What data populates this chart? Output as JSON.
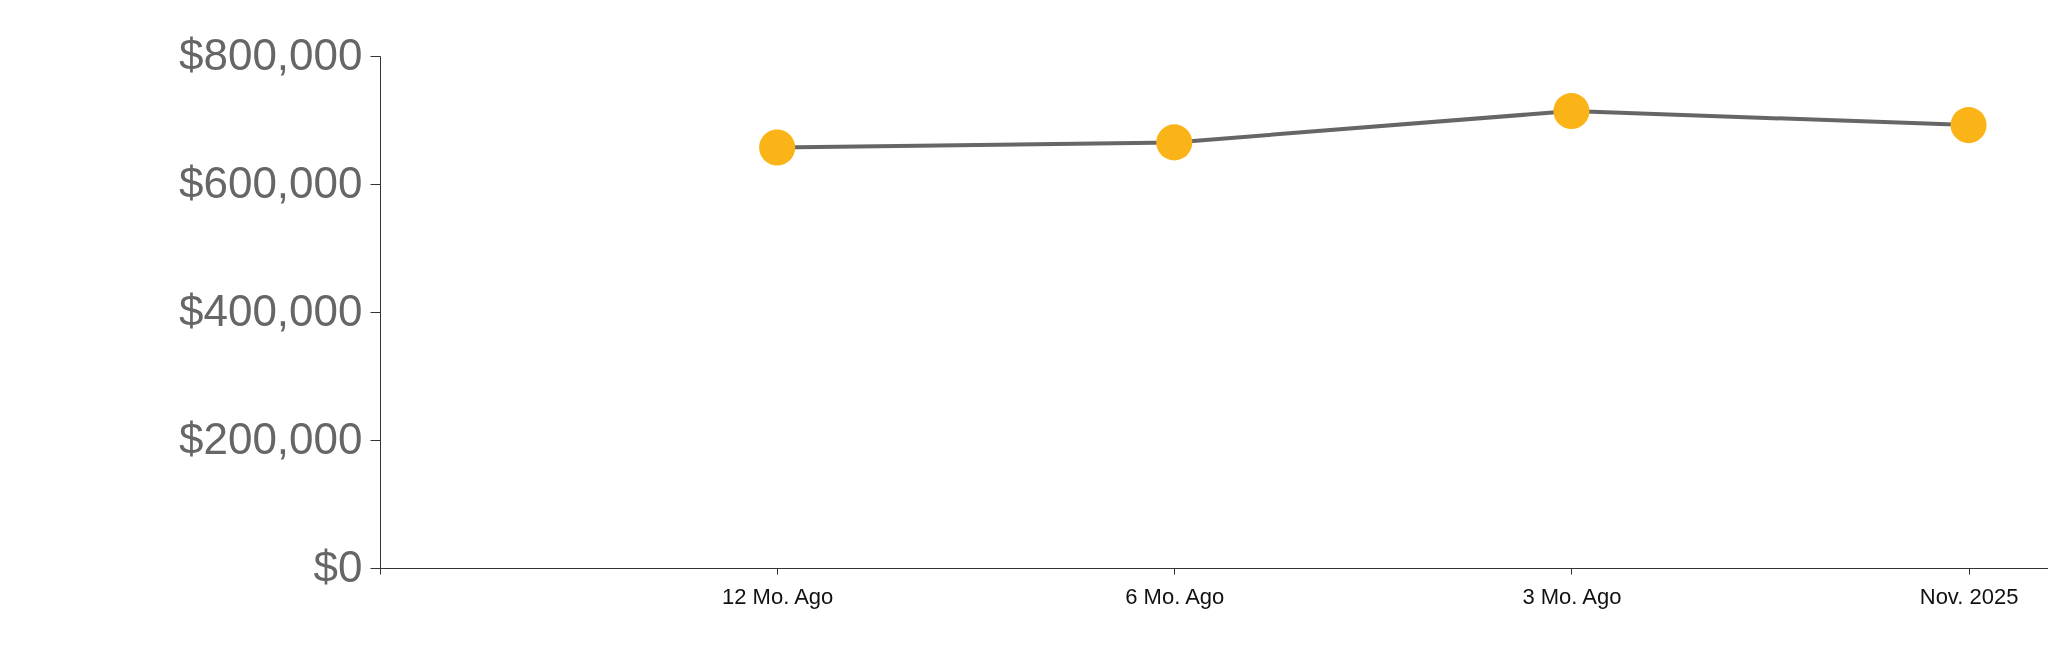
{
  "chart_data": {
    "type": "line",
    "categories": [
      null,
      "12 Mo. Ago",
      "6 Mo. Ago",
      "3 Mo. Ago",
      "Nov. 2025"
    ],
    "series": [
      {
        "color": "#666666",
        "colors": [
          null,
          "#fbb417",
          "#fbb417",
          "#fbb417",
          "#fbb417"
        ],
        "values": [
          null,
          657000,
          665000,
          714000,
          692000
        ]
      }
    ],
    "ylim": [
      0,
      800000
    ],
    "yticks": [
      {
        "value": 0,
        "label": "$0"
      },
      {
        "value": 200000,
        "label": "$200,000"
      },
      {
        "value": 400000,
        "label": "$400,000"
      },
      {
        "value": 600000,
        "label": "$600,000"
      },
      {
        "value": 800000,
        "label": "$800,000"
      }
    ],
    "marker": "circle",
    "grid": false
  }
}
